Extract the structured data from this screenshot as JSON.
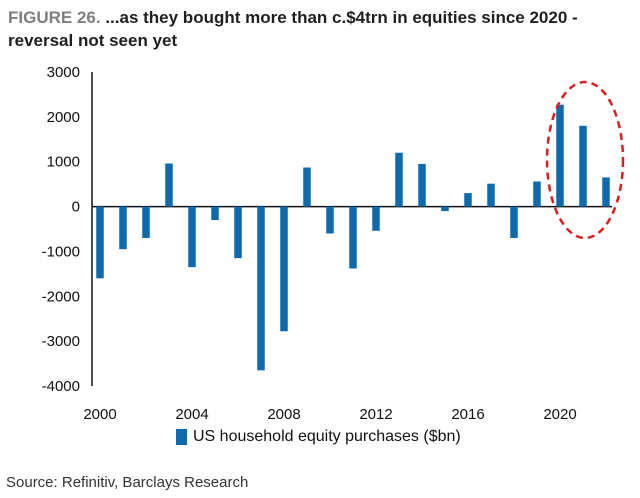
{
  "header": {
    "figure_label": "FIGURE 26.",
    "title_text": "...as they bought more than c.$4trn in equities since 2020 - reversal not seen yet"
  },
  "footer": {
    "source": "Source: Refinitiv, Barclays Research"
  },
  "colors": {
    "bar": "#0e6aad",
    "axis": "#111111",
    "highlight": "#d62020"
  },
  "chart_data": {
    "type": "bar",
    "title": "",
    "xlabel": "",
    "ylabel": "",
    "ylim": [
      -4000,
      3000
    ],
    "yticks": [
      3000,
      2000,
      1000,
      0,
      -1000,
      -2000,
      -3000,
      -4000
    ],
    "xticks": [
      "2000",
      "2004",
      "2008",
      "2012",
      "2016",
      "2020"
    ],
    "legend_position": "bottom",
    "grid": false,
    "annotation": "dashed red ellipse around 2020-2022",
    "series": [
      {
        "name": "US household equity purchases ($bn)",
        "x": [
          2000,
          2001,
          2002,
          2003,
          2004,
          2005,
          2006,
          2007,
          2008,
          2009,
          2010,
          2011,
          2012,
          2013,
          2014,
          2015,
          2016,
          2017,
          2018,
          2019,
          2020,
          2021,
          2022
        ],
        "values": [
          -1600,
          -950,
          -700,
          960,
          -1350,
          -300,
          -1150,
          -3650,
          -2780,
          870,
          -600,
          -1380,
          -540,
          1200,
          950,
          -100,
          300,
          510,
          -700,
          560,
          2270,
          1800,
          650
        ]
      }
    ]
  }
}
